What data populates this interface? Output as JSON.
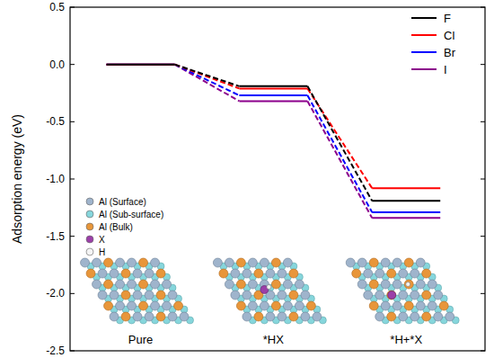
{
  "chart_data": {
    "type": "energy_level",
    "y_label": "Adsorption energy (eV)",
    "categories": [
      "Pure",
      "*HX",
      "*H+*X"
    ],
    "series": [
      {
        "name": "F",
        "color": "#000000",
        "values": [
          0,
          -0.19,
          -1.19
        ]
      },
      {
        "name": "Cl",
        "color": "#ff0000",
        "values": [
          0,
          -0.21,
          -1.08
        ]
      },
      {
        "name": "Br",
        "color": "#0000ff",
        "values": [
          0,
          -0.27,
          -1.29
        ]
      },
      {
        "name": "I",
        "color": "#8b008b",
        "values": [
          0,
          -0.32,
          -1.34
        ]
      }
    ],
    "ylim": [
      -2.5,
      0.5
    ],
    "yticks": [
      -2.5,
      {
        "value": -2,
        "label": "-2.0"
      },
      -1.5,
      {
        "value": -1,
        "label": "-1.0"
      },
      -0.5,
      {
        "value": 0,
        "label": "0.0"
      },
      0.5
    ],
    "legend": "upper right",
    "line_style": "dashed",
    "annotations": [
      {
        "text": "Al (Surface)",
        "color": "#9fb4cc"
      },
      {
        "text": "Al (Sub-surface)",
        "color": "#86d6dc"
      },
      {
        "text": "Al (Bulk)",
        "color": "#e8963a"
      },
      {
        "text": "X",
        "color": "#9b3fa8"
      },
      {
        "text": "H",
        "color": "#f4f4f4"
      }
    ]
  }
}
